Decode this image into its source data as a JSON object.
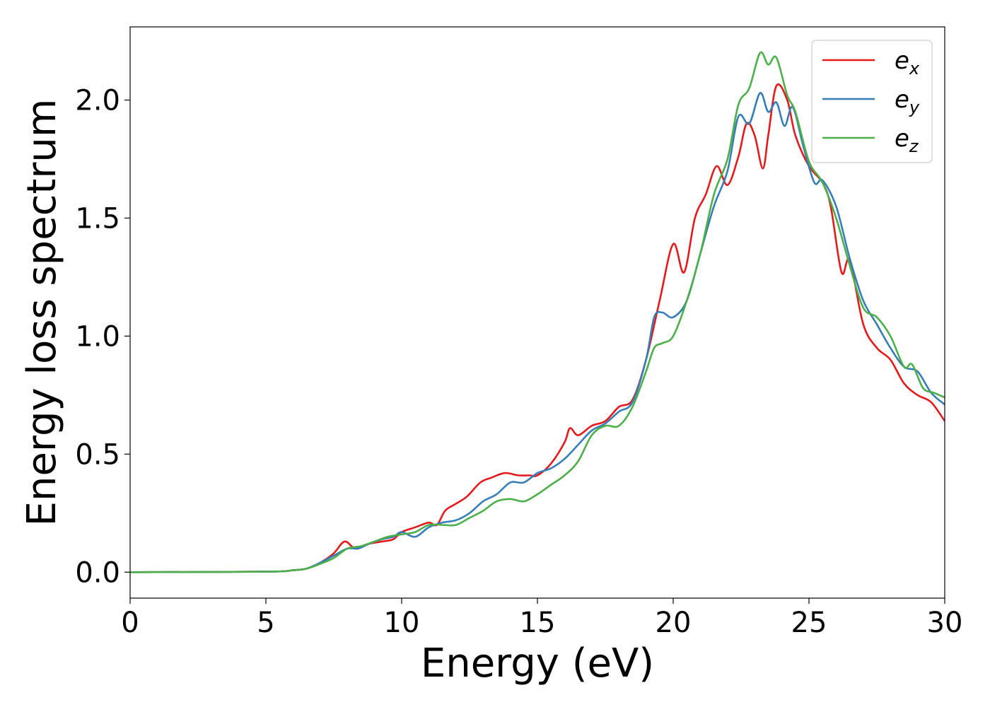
{
  "chart_data": {
    "type": "line",
    "title": "",
    "xlabel": "Energy (eV)",
    "ylabel": "Energy loss spectrum",
    "xlim": [
      0,
      30
    ],
    "ylim": [
      -0.11,
      2.31
    ],
    "xticks": [
      0,
      5,
      10,
      15,
      20,
      25,
      30
    ],
    "xtick_labels": [
      "0",
      "5",
      "10",
      "15",
      "20",
      "25",
      "30"
    ],
    "yticks": [
      0.0,
      0.5,
      1.0,
      1.5,
      2.0
    ],
    "ytick_labels": [
      "0.0",
      "0.5",
      "1.0",
      "1.5",
      "2.0"
    ],
    "grid": false,
    "legend_position": "top-right",
    "series": [
      {
        "name": "e_x",
        "label_base": "e",
        "label_sub": "x",
        "color": "#e41a1c",
        "x": [
          0,
          5,
          6,
          6.5,
          7,
          7.5,
          7.9,
          8.3,
          8.8,
          9.3,
          9.7,
          10.0,
          10.5,
          11.0,
          11.3,
          11.6,
          12.0,
          12.4,
          12.9,
          13.3,
          13.8,
          14.3,
          14.7,
          15.0,
          15.5,
          16.0,
          16.2,
          16.5,
          17.0,
          17.5,
          18.0,
          18.5,
          19.0,
          19.5,
          20.0,
          20.4,
          20.8,
          21.2,
          21.6,
          22.0,
          22.4,
          22.7,
          23.0,
          23.3,
          23.5,
          23.8,
          24.2,
          24.5,
          25.0,
          25.5,
          25.8,
          26.2,
          26.5,
          27.0,
          27.5,
          28.0,
          28.5,
          29.0,
          29.5,
          30.0
        ],
        "values": [
          0.0,
          0.002,
          0.008,
          0.015,
          0.04,
          0.08,
          0.13,
          0.1,
          0.12,
          0.13,
          0.14,
          0.17,
          0.19,
          0.21,
          0.2,
          0.26,
          0.29,
          0.32,
          0.38,
          0.4,
          0.42,
          0.41,
          0.41,
          0.41,
          0.46,
          0.55,
          0.61,
          0.58,
          0.62,
          0.64,
          0.7,
          0.73,
          0.9,
          1.15,
          1.39,
          1.27,
          1.5,
          1.6,
          1.72,
          1.64,
          1.76,
          1.9,
          1.85,
          1.71,
          1.85,
          2.06,
          2.0,
          1.85,
          1.72,
          1.65,
          1.55,
          1.27,
          1.32,
          1.05,
          0.95,
          0.9,
          0.8,
          0.75,
          0.72,
          0.64
        ]
      },
      {
        "name": "e_y",
        "label_base": "e",
        "label_sub": "y",
        "color": "#377eb8",
        "x": [
          0,
          5,
          6,
          6.5,
          7,
          7.5,
          8.0,
          8.4,
          8.8,
          9.3,
          9.7,
          10.0,
          10.5,
          11.0,
          11.5,
          12.0,
          12.5,
          13.0,
          13.5,
          14.0,
          14.5,
          15.0,
          15.5,
          16.0,
          16.5,
          17.0,
          17.5,
          18.0,
          18.5,
          19.0,
          19.3,
          19.6,
          20.0,
          20.5,
          21.0,
          21.5,
          22.0,
          22.4,
          22.8,
          23.2,
          23.5,
          23.8,
          24.1,
          24.4,
          24.8,
          25.2,
          25.5,
          26.0,
          26.5,
          27.0,
          27.5,
          28.0,
          28.5,
          29.0,
          29.5,
          30.0
        ],
        "values": [
          0.0,
          0.002,
          0.008,
          0.015,
          0.04,
          0.07,
          0.1,
          0.1,
          0.12,
          0.14,
          0.15,
          0.17,
          0.15,
          0.19,
          0.21,
          0.22,
          0.25,
          0.3,
          0.33,
          0.38,
          0.38,
          0.42,
          0.44,
          0.48,
          0.54,
          0.6,
          0.63,
          0.68,
          0.72,
          0.9,
          1.08,
          1.1,
          1.08,
          1.15,
          1.35,
          1.55,
          1.7,
          1.93,
          1.9,
          2.03,
          1.95,
          1.99,
          1.89,
          1.97,
          1.8,
          1.65,
          1.66,
          1.55,
          1.33,
          1.15,
          1.05,
          0.95,
          0.87,
          0.85,
          0.76,
          0.71
        ]
      },
      {
        "name": "e_z",
        "label_base": "e",
        "label_sub": "z",
        "color": "#4daf4a",
        "x": [
          0,
          5,
          6,
          6.5,
          7,
          7.5,
          8.0,
          8.5,
          9.0,
          9.5,
          10.0,
          10.5,
          11.0,
          11.5,
          12.0,
          12.5,
          13.0,
          13.5,
          14.0,
          14.5,
          15.0,
          15.5,
          16.0,
          16.5,
          17.0,
          17.5,
          18.0,
          18.5,
          19.0,
          19.3,
          19.6,
          20.0,
          20.5,
          21.0,
          21.5,
          22.0,
          22.4,
          22.8,
          23.2,
          23.5,
          23.8,
          24.2,
          24.5,
          25.0,
          25.5,
          26.0,
          26.5,
          27.0,
          27.5,
          28.0,
          28.5,
          28.8,
          29.2,
          29.6,
          30.0
        ],
        "values": [
          0.0,
          0.002,
          0.008,
          0.015,
          0.035,
          0.06,
          0.1,
          0.11,
          0.13,
          0.15,
          0.16,
          0.17,
          0.2,
          0.2,
          0.2,
          0.23,
          0.26,
          0.3,
          0.31,
          0.3,
          0.33,
          0.37,
          0.41,
          0.47,
          0.58,
          0.62,
          0.62,
          0.7,
          0.85,
          0.95,
          0.97,
          1.0,
          1.15,
          1.35,
          1.6,
          1.75,
          1.98,
          2.05,
          2.2,
          2.15,
          2.18,
          2.02,
          1.95,
          1.74,
          1.65,
          1.5,
          1.3,
          1.12,
          1.08,
          1.0,
          0.87,
          0.88,
          0.78,
          0.76,
          0.74
        ]
      }
    ]
  }
}
